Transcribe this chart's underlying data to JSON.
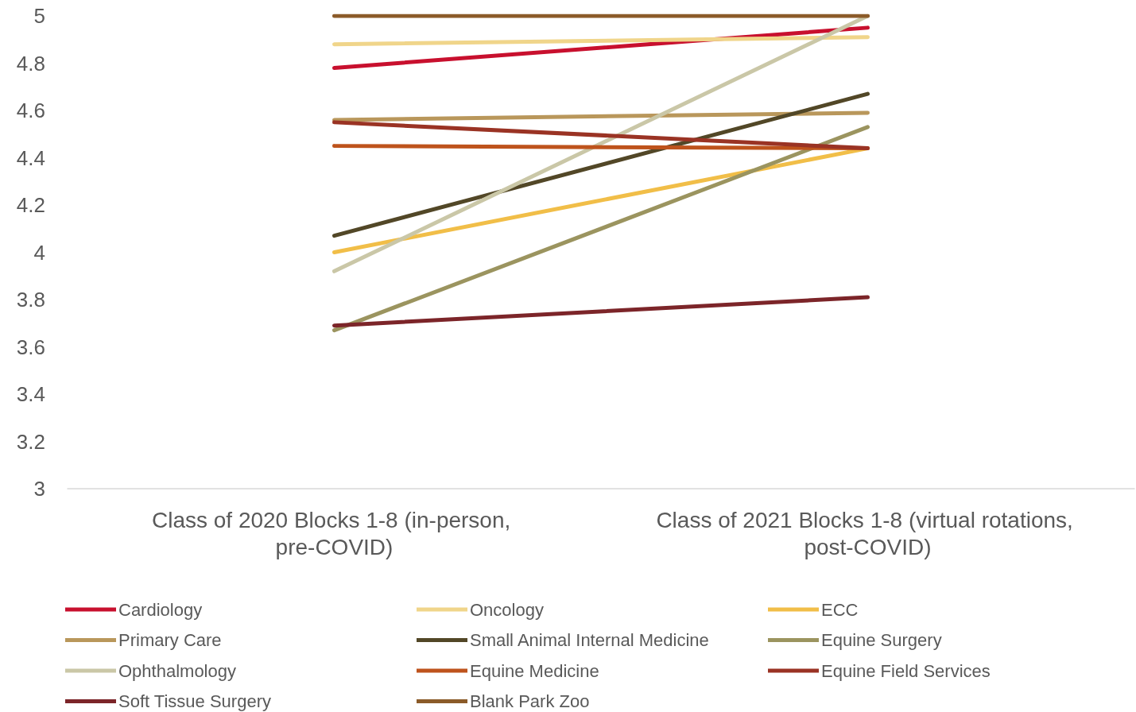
{
  "chart_data": {
    "type": "line",
    "categories": [
      "Class of 2020 Blocks 1-8 (in-person, pre-COVID)",
      "Class of 2021 Blocks 1-8 (virtual rotations, post-COVID)"
    ],
    "ylim": [
      3,
      5
    ],
    "yticks": [
      3,
      3.2,
      3.4,
      3.6,
      3.8,
      4,
      4.2,
      4.4,
      4.6,
      4.8,
      5
    ],
    "grid": false,
    "legend": "bottom",
    "marker": "none",
    "line_style": "solid",
    "series": [
      {
        "name": "Cardiology",
        "color": "#c8102e",
        "values": [
          4.78,
          4.95
        ]
      },
      {
        "name": "Oncology",
        "color": "#f0d58a",
        "values": [
          4.88,
          4.91
        ]
      },
      {
        "name": "ECC",
        "color": "#f1be48",
        "values": [
          4.0,
          4.44
        ]
      },
      {
        "name": "Primary Care",
        "color": "#b9975b",
        "values": [
          4.56,
          4.59
        ]
      },
      {
        "name": "Small Animal Internal Medicine",
        "color": "#524727",
        "values": [
          4.07,
          4.67
        ]
      },
      {
        "name": "Equine Surgery",
        "color": "#9b945f",
        "values": [
          3.67,
          4.53
        ]
      },
      {
        "name": "Ophthalmology",
        "color": "#cac7a7",
        "values": [
          3.92,
          5.0
        ]
      },
      {
        "name": "Equine Medicine",
        "color": "#be531c",
        "values": [
          4.45,
          4.44
        ]
      },
      {
        "name": "Equine Field Services",
        "color": "#9a3324",
        "values": [
          4.55,
          4.44
        ]
      },
      {
        "name": "Soft Tissue Surgery",
        "color": "#7c2529",
        "values": [
          3.69,
          3.81
        ]
      },
      {
        "name": "Blank Park Zoo",
        "color": "#8b5b29",
        "values": [
          5.0,
          5.0
        ]
      }
    ]
  }
}
